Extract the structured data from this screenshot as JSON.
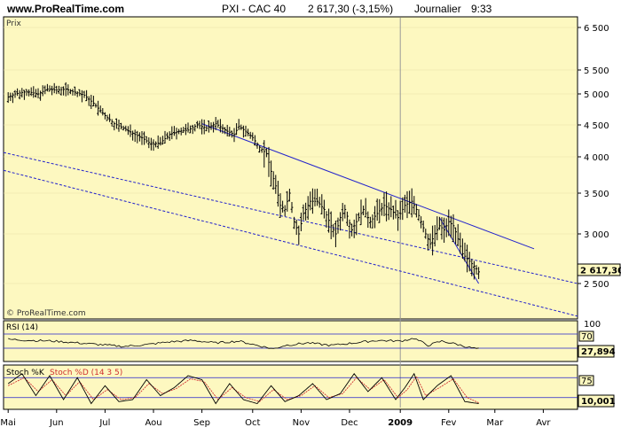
{
  "header": {
    "site": "www.ProRealTime.com",
    "instrument": "PXI - CAC 40",
    "price_change": "2 617,30 (-3,15%)",
    "period": "Journalier",
    "time": "9:33"
  },
  "panels": {
    "price_label": "Prix",
    "watermark": "© ProRealTime.com",
    "rsi_label": "RSI (14)",
    "stoch_label_k": "Stoch %K",
    "stoch_label_d": "Stoch %D (14 3 5)"
  },
  "badges": {
    "last_price": "2 617,30",
    "rsi_level": "70",
    "rsi_value": "27,894",
    "stoch_level": "75",
    "stoch_value": "10,001"
  },
  "colors": {
    "plot_bg": "#fdf8c0",
    "trendline": "#2222cc",
    "dotted_channel": "#2222cc",
    "stoch_d": "#d03030",
    "badge_bg": "#fdf8c0"
  },
  "chart_data": {
    "type": "ohlc",
    "title": "PXI - CAC 40",
    "x_labels": [
      "Mai",
      "Jun",
      "Jul",
      "Aou",
      "Sep",
      "Oct",
      "Nov",
      "Dec",
      "2009",
      "Fev",
      "Mar",
      "Avr"
    ],
    "y_ticks": [
      "6 500",
      "5 500",
      "5 000",
      "4 500",
      "4 000",
      "3 500",
      "3 000",
      "2 500"
    ],
    "ylim": [
      2100,
      6600
    ],
    "price_anchors": [
      [
        0,
        4950
      ],
      [
        3,
        5000
      ],
      [
        8,
        5050
      ],
      [
        13,
        5000
      ],
      [
        17,
        5100
      ],
      [
        21,
        5080
      ],
      [
        25,
        5100
      ],
      [
        28,
        5050
      ],
      [
        33,
        4980
      ],
      [
        37,
        4850
      ],
      [
        42,
        4650
      ],
      [
        46,
        4520
      ],
      [
        50,
        4450
      ],
      [
        55,
        4350
      ],
      [
        58,
        4300
      ],
      [
        62,
        4200
      ],
      [
        66,
        4220
      ],
      [
        70,
        4350
      ],
      [
        74,
        4400
      ],
      [
        78,
        4420
      ],
      [
        82,
        4500
      ],
      [
        86,
        4450
      ],
      [
        90,
        4520
      ],
      [
        95,
        4400
      ],
      [
        98,
        4350
      ],
      [
        100,
        4480
      ],
      [
        103,
        4400
      ],
      [
        106,
        4300
      ],
      [
        109,
        4150
      ],
      [
        112,
        4050
      ],
      [
        114,
        3800
      ],
      [
        116,
        3600
      ],
      [
        118,
        3350
      ],
      [
        120,
        3300
      ],
      [
        122,
        3500
      ],
      [
        124,
        3150
      ],
      [
        126,
        3000
      ],
      [
        128,
        3250
      ],
      [
        131,
        3400
      ],
      [
        134,
        3400
      ],
      [
        137,
        3300
      ],
      [
        140,
        3100
      ],
      [
        142,
        3000
      ],
      [
        144,
        3200
      ],
      [
        146,
        3300
      ],
      [
        149,
        3050
      ],
      [
        151,
        3150
      ],
      [
        154,
        3300
      ],
      [
        157,
        3150
      ],
      [
        160,
        3250
      ],
      [
        163,
        3350
      ],
      [
        166,
        3300
      ],
      [
        169,
        3200
      ],
      [
        172,
        3350
      ],
      [
        175,
        3400
      ],
      [
        177,
        3300
      ],
      [
        179,
        3150
      ],
      [
        181,
        3000
      ],
      [
        183,
        2900
      ],
      [
        185,
        3000
      ],
      [
        187,
        3100
      ],
      [
        189,
        3050
      ],
      [
        191,
        3150
      ],
      [
        193,
        3100
      ],
      [
        195,
        2950
      ],
      [
        197,
        2800
      ],
      [
        199,
        2750
      ],
      [
        201,
        2700
      ],
      [
        203,
        2650
      ],
      [
        204,
        2617
      ]
    ],
    "x_months_days": [
      0,
      21,
      42,
      63,
      84,
      106,
      127,
      148,
      170,
      191,
      211,
      232
    ],
    "trendlines": [
      {
        "from": [
          84,
          4520
        ],
        "to": [
          228,
          2850
        ],
        "style": "solid"
      },
      {
        "from": [
          187,
          3200
        ],
        "to": [
          204,
          2500
        ],
        "style": "solid"
      },
      {
        "from": [
          -15,
          4150
        ],
        "to": [
          250,
          2480
        ],
        "style": "dotted"
      },
      {
        "from": [
          -15,
          3900
        ],
        "to": [
          250,
          2150
        ],
        "style": "dotted"
      }
    ],
    "rsi": {
      "label": "RSI (14)",
      "ylim": [
        0,
        100
      ],
      "levels": [
        30,
        70
      ],
      "anchors": [
        [
          0,
          55
        ],
        [
          10,
          52
        ],
        [
          20,
          50
        ],
        [
          30,
          45
        ],
        [
          40,
          40
        ],
        [
          50,
          35
        ],
        [
          60,
          40
        ],
        [
          70,
          48
        ],
        [
          80,
          52
        ],
        [
          90,
          45
        ],
        [
          100,
          50
        ],
        [
          110,
          35
        ],
        [
          115,
          28
        ],
        [
          120,
          38
        ],
        [
          130,
          45
        ],
        [
          140,
          38
        ],
        [
          150,
          45
        ],
        [
          160,
          52
        ],
        [
          170,
          50
        ],
        [
          176,
          58
        ],
        [
          182,
          38
        ],
        [
          188,
          50
        ],
        [
          194,
          42
        ],
        [
          200,
          32
        ],
        [
          204,
          27.894
        ]
      ]
    },
    "stoch": {
      "label_k": "Stoch %K",
      "label_d": "Stoch %D (14 3 5)",
      "ylim": [
        0,
        100
      ],
      "levels": [
        25,
        75
      ],
      "k_anchors": [
        [
          0,
          60
        ],
        [
          6,
          85
        ],
        [
          12,
          30
        ],
        [
          18,
          80
        ],
        [
          24,
          20
        ],
        [
          30,
          75
        ],
        [
          36,
          10
        ],
        [
          42,
          55
        ],
        [
          48,
          15
        ],
        [
          54,
          20
        ],
        [
          60,
          70
        ],
        [
          66,
          30
        ],
        [
          72,
          50
        ],
        [
          78,
          80
        ],
        [
          84,
          70
        ],
        [
          90,
          10
        ],
        [
          96,
          60
        ],
        [
          102,
          20
        ],
        [
          108,
          10
        ],
        [
          114,
          55
        ],
        [
          120,
          15
        ],
        [
          126,
          30
        ],
        [
          132,
          60
        ],
        [
          138,
          20
        ],
        [
          144,
          35
        ],
        [
          150,
          85
        ],
        [
          156,
          40
        ],
        [
          162,
          75
        ],
        [
          168,
          20
        ],
        [
          172,
          50
        ],
        [
          176,
          85
        ],
        [
          180,
          20
        ],
        [
          186,
          55
        ],
        [
          192,
          80
        ],
        [
          198,
          15
        ],
        [
          204,
          10
        ]
      ],
      "d_anchors": [
        [
          0,
          55
        ],
        [
          7,
          75
        ],
        [
          13,
          40
        ],
        [
          19,
          70
        ],
        [
          25,
          30
        ],
        [
          31,
          65
        ],
        [
          37,
          20
        ],
        [
          43,
          45
        ],
        [
          49,
          20
        ],
        [
          55,
          25
        ],
        [
          61,
          60
        ],
        [
          67,
          35
        ],
        [
          73,
          48
        ],
        [
          79,
          72
        ],
        [
          85,
          65
        ],
        [
          91,
          20
        ],
        [
          97,
          50
        ],
        [
          103,
          25
        ],
        [
          109,
          15
        ],
        [
          115,
          45
        ],
        [
          121,
          20
        ],
        [
          127,
          30
        ],
        [
          133,
          55
        ],
        [
          139,
          25
        ],
        [
          145,
          35
        ],
        [
          151,
          75
        ],
        [
          157,
          45
        ],
        [
          163,
          70
        ],
        [
          169,
          25
        ],
        [
          173,
          45
        ],
        [
          177,
          78
        ],
        [
          181,
          30
        ],
        [
          187,
          50
        ],
        [
          193,
          72
        ],
        [
          199,
          25
        ],
        [
          204,
          12
        ]
      ]
    }
  }
}
